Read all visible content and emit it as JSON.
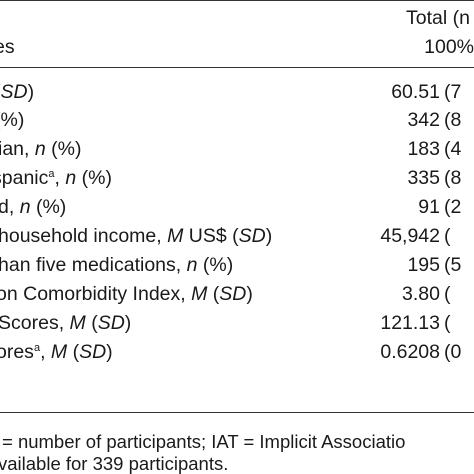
{
  "header": {
    "total_label": "Total (n",
    "total_pct": "100%",
    "variable_label": "es"
  },
  "rows": [
    {
      "label_html": "(<i>SD</i>)",
      "value": "60.51",
      "extra": "(7"
    },
    {
      "label_html": "(%)",
      "value": "342",
      "extra": "(8"
    },
    {
      "label_html": "ian, <i>n</i> (%)",
      "value": "183",
      "extra": "(4"
    },
    {
      "label_html": "spanic<sup>a</sup>, <i>n</i> (%)",
      "value": "335",
      "extra": "(8"
    },
    {
      "label_html": "d, <i>n</i> (%)",
      "value": "91",
      "extra": "(2"
    },
    {
      "label_html": "household income, <i>M</i> US$ (<i>SD</i>)",
      "value": "45,942",
      "extra": "("
    },
    {
      "label_html": "han five medications, <i>n</i> (%)",
      "value": "195",
      "extra": "(5"
    },
    {
      "label_html": "on Comorbidity Index, <i>M</i> (<i>SD</i>)",
      "value": "3.80",
      "extra": "("
    },
    {
      "label_html": "Scores, <i>M</i> (<i>SD</i>)",
      "value": "121.13",
      "extra": "("
    },
    {
      "label_html": "ores<sup>a</sup>, <i>M</i> (<i>SD</i>)",
      "value": "0.6208",
      "extra": "(0"
    }
  ],
  "notes": {
    "line1": "= number of participants; IAT = Implicit Associatio",
    "line2": "vailable for 339 participants."
  }
}
